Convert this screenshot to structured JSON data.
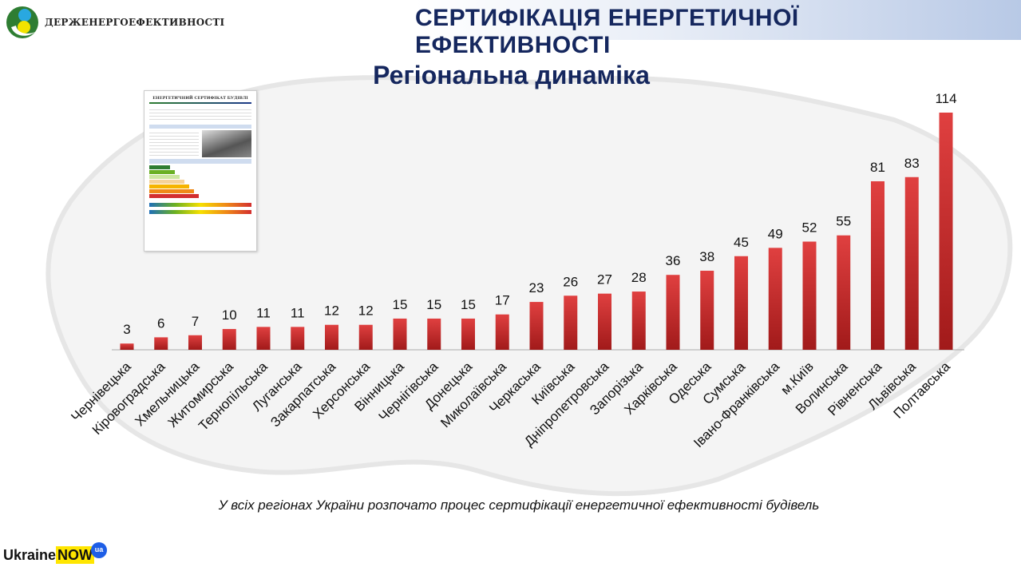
{
  "header": {
    "title": "СЕРТИФІКАЦІЯ ЕНЕРГЕТИЧНОЇ ЕФЕКТИВНОСТІ",
    "logo_text": "ДЕРЖЕНЕРГОЕФЕКТИВНОСТІ"
  },
  "certificate": {
    "title": "ЕНЕРГЕТИЧНИЙ СЕРТИФІКАТ БУДІВЛІ"
  },
  "footnote": "У всіх регіонах України розпочато процес сертифікації енергетичної ефективності будівель",
  "brand": {
    "ukraine": "Ukraine",
    "now": "NOW",
    "ua": "ua"
  },
  "colors": {
    "bar": "#c62828",
    "title": "#15275e"
  },
  "chart_data": {
    "type": "bar",
    "title": "Регіональна динаміка",
    "xlabel": "",
    "ylabel": "",
    "ylim": [
      0,
      114
    ],
    "grid": false,
    "categories": [
      "Чернівецька",
      "Кіровоградська",
      "Хмельницька",
      "Житомирська",
      "Тернопільська",
      "Луганська",
      "Закарпатська",
      "Херсонська",
      "Вінницька",
      "Чернігівська",
      "Донецька",
      "Миколаївська",
      "Черкаська",
      "Київська",
      "Дніпропетровська",
      "Запорізька",
      "Харківська",
      "Одеська",
      "Сумська",
      "Івано-Франківська",
      "м.Київ",
      "Волинська",
      "Рівненська",
      "Львівська",
      "Полтавська"
    ],
    "values": [
      3,
      6,
      7,
      10,
      11,
      11,
      12,
      12,
      15,
      15,
      15,
      17,
      23,
      26,
      27,
      28,
      36,
      38,
      45,
      49,
      52,
      55,
      81,
      83,
      114
    ]
  }
}
